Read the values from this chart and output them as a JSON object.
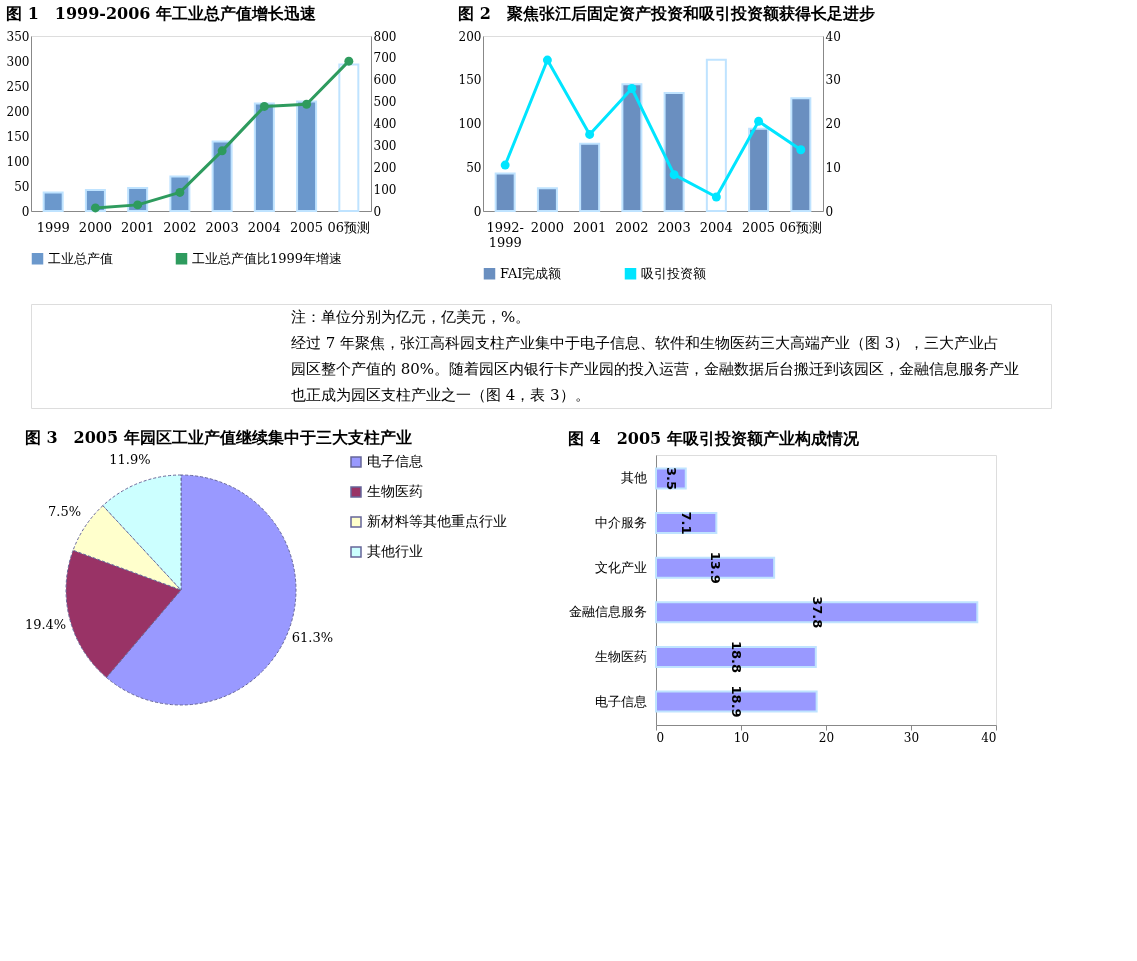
{
  "chart_data": [
    {
      "type": "bar",
      "title": "图 1　1999-2006 年工业总产值增长迅速",
      "categories": [
        "1999",
        "2000",
        "2001",
        "2002",
        "2003",
        "2004",
        "2005",
        "06预测"
      ],
      "series": [
        {
          "name": "工业总产值",
          "type": "bar",
          "color": "#6b98cc",
          "colors": [
            "#6b98cc",
            "#6b98cc",
            "#6b98cc",
            "#6b98cc",
            "#6b98cc",
            "#6b98cc",
            "#6b98cc",
            "#ffffff"
          ],
          "values": [
            37,
            42,
            46,
            69,
            139,
            215,
            219,
            293
          ]
        },
        {
          "name": "工业总产值比1999年增速",
          "type": "line",
          "axis": "y2",
          "color": "#2e9b5e",
          "values": [
            null,
            14,
            28,
            85,
            275,
            478,
            488,
            685
          ]
        }
      ],
      "ylim": [
        0,
        350
      ],
      "yticks": [
        0,
        50,
        100,
        150,
        200,
        250,
        300,
        350
      ],
      "y2lim": [
        0,
        800
      ],
      "y2ticks": [
        0,
        100,
        200,
        300,
        400,
        500,
        600,
        700,
        800
      ],
      "marker": "circle",
      "legend": "bottom"
    },
    {
      "type": "bar",
      "title": "图 2　聚焦张江后固定资产投资和吸引投资额获得长足进步",
      "categories": [
        "1992-1999",
        "2000",
        "2001",
        "2002",
        "2003",
        "2004",
        "2005",
        "06预测"
      ],
      "series": [
        {
          "name": "FAI完成额",
          "type": "bar",
          "color": "#6a8fc0",
          "colors": [
            "#6a8fc0",
            "#6a8fc0",
            "#6a8fc0",
            "#6a8fc0",
            "#6a8fc0",
            "#ffffff",
            "#6a8fc0",
            "#6a8fc0"
          ],
          "values": [
            43,
            26,
            77,
            145,
            135,
            173,
            94,
            129
          ]
        },
        {
          "name": "吸引投资额",
          "type": "line",
          "axis": "y2",
          "color": "#00e5ff",
          "values": [
            10.5,
            34.5,
            17.5,
            28,
            8.3,
            3.2,
            20.5,
            14
          ]
        }
      ],
      "ylim": [
        0,
        200
      ],
      "yticks": [
        0,
        50,
        100,
        150,
        200
      ],
      "y2lim": [
        0,
        40
      ],
      "y2ticks": [
        0,
        10,
        20,
        30,
        40
      ],
      "marker": "circle",
      "legend": "bottom",
      "annotations": [
        "注：单位分别为亿元，亿美元，%。",
        "经过 7 年聚焦，张江高科园支柱产业集中于电子信息、软件和生物医药三大高端产业（图 3），三大产业占园区整个产值的 80%。随着园区内银行卡产业园的投入运营，金融数据后台搬迁到该园区，金融信息服务产业也正成为园区支柱产业之一（图 4，表 3）。"
      ]
    },
    {
      "type": "pie",
      "title": "图 3　2005 年园区工业产值继续集中于三大支柱产业",
      "categories": [
        "电子信息",
        "生物医药",
        "新材料等其他重点行业",
        "其他行业"
      ],
      "values": [
        61.3,
        19.4,
        7.5,
        11.9
      ],
      "colors": [
        "#9999ff",
        "#993366",
        "#ffffcc",
        "#ccffff"
      ],
      "value_labels": [
        "61.3%",
        "19.4%",
        "7.5%",
        "11.9%"
      ],
      "legend": "right"
    },
    {
      "type": "bar",
      "orientation": "horizontal",
      "title": "图 4　2005 年吸引投资额产业构成情况",
      "categories": [
        "其他",
        "中介服务",
        "文化产业",
        "金融信息服务",
        "生物医药",
        "电子信息"
      ],
      "values": [
        3.5,
        7.1,
        13.9,
        37.8,
        18.8,
        18.9
      ],
      "color": "#9999ff",
      "xlim": [
        0,
        40
      ],
      "xticks": [
        0,
        10,
        20,
        30,
        40
      ],
      "data_labels": true
    }
  ]
}
